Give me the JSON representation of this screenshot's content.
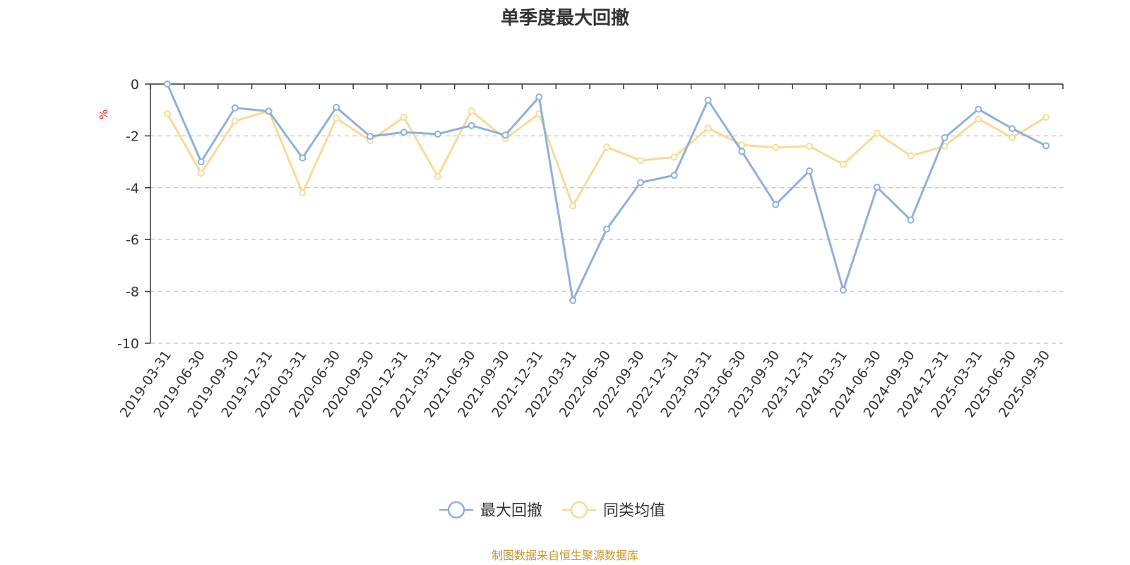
{
  "chart_data": {
    "type": "line",
    "title": "单季度最大回撤",
    "ylabel": "%",
    "ylim": [
      -10,
      0
    ],
    "yticks": [
      0,
      -2,
      -4,
      -6,
      -8,
      -10
    ],
    "grid": true,
    "legend_position": "bottom",
    "categories": [
      "2019-03-31",
      "2019-06-30",
      "2019-09-30",
      "2019-12-31",
      "2020-03-31",
      "2020-06-30",
      "2020-09-30",
      "2020-12-31",
      "2021-03-31",
      "2021-06-30",
      "2021-09-30",
      "2021-12-31",
      "2022-03-31",
      "2022-06-30",
      "2022-09-30",
      "2022-12-31",
      "2023-03-31",
      "2023-06-30",
      "2023-09-30",
      "2023-12-31",
      "2024-03-31",
      "2024-06-30",
      "2024-09-30",
      "2024-12-31",
      "2025-03-31",
      "2025-06-30",
      "2025-09-30"
    ],
    "series": [
      {
        "name": "最大回撤",
        "color": "#8eb0dc",
        "values": [
          0,
          -3.0,
          -0.92,
          -1.05,
          -2.85,
          -0.9,
          -2.02,
          -1.86,
          -1.93,
          -1.6,
          -1.97,
          -0.5,
          -8.35,
          -5.6,
          -3.8,
          -3.52,
          -0.62,
          -2.6,
          -4.65,
          -3.35,
          -7.95,
          -3.98,
          -5.25,
          -2.07,
          -0.97,
          -1.72,
          -2.38
        ]
      },
      {
        "name": "同类均值",
        "color": "#fbd996",
        "values": [
          -1.14,
          -3.44,
          -1.43,
          -1.04,
          -4.2,
          -1.32,
          -2.18,
          -1.28,
          -3.56,
          -1.04,
          -2.11,
          -1.15,
          -4.7,
          -2.43,
          -2.95,
          -2.82,
          -1.7,
          -2.35,
          -2.45,
          -2.4,
          -3.1,
          -1.9,
          -2.77,
          -2.4,
          -1.35,
          -2.07,
          -1.28
        ]
      }
    ]
  },
  "source_note": "制图数据来自恒生聚源数据库"
}
